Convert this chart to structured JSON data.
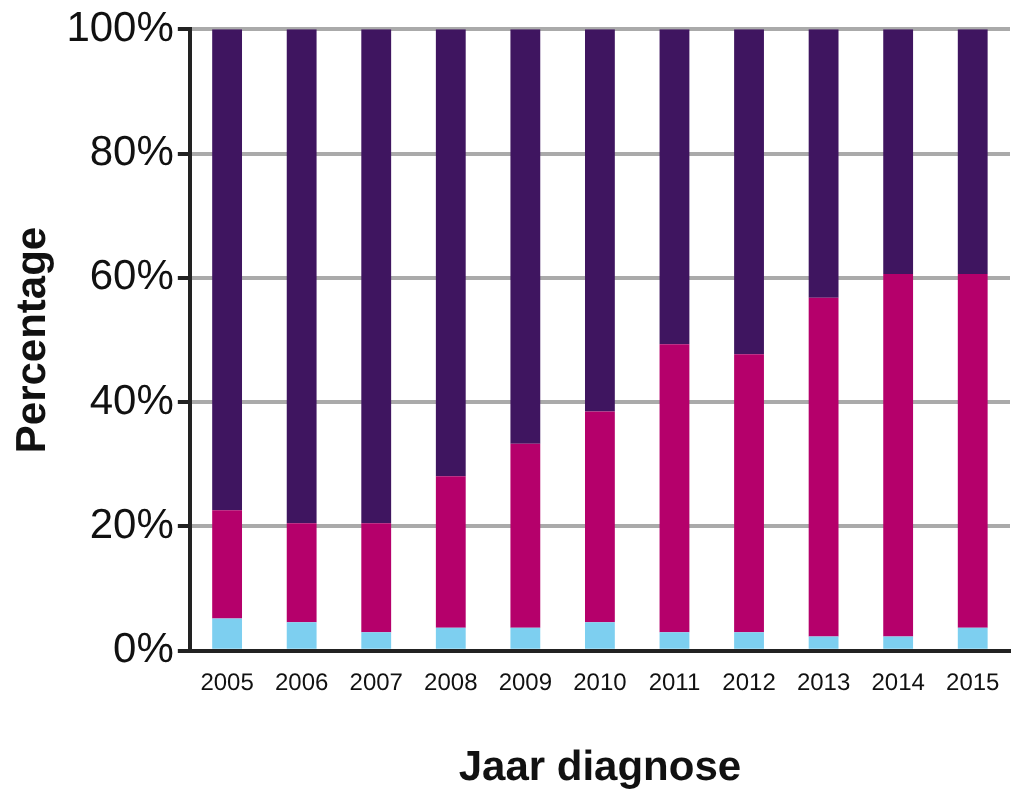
{
  "chart_data": {
    "type": "bar",
    "stacked": true,
    "xlabel": "Jaar diagnose",
    "ylabel": "Percentage",
    "categories": [
      "2005",
      "2006",
      "2007",
      "2008",
      "2009",
      "2010",
      "2011",
      "2012",
      "2013",
      "2014",
      "2015"
    ],
    "series": [
      {
        "color": "#7dcff0",
        "values": [
          5.2,
          4.6,
          3.0,
          3.7,
          3.7,
          4.6,
          3.0,
          3.0,
          2.3,
          2.3,
          3.7
        ]
      },
      {
        "color": "#b5006b",
        "values": [
          17.4,
          15.9,
          17.5,
          24.4,
          29.6,
          33.9,
          46.3,
          44.7,
          54.5,
          58.3,
          56.9
        ]
      },
      {
        "color": "#3f1560",
        "values": [
          77.4,
          79.5,
          79.5,
          71.9,
          66.7,
          61.5,
          50.7,
          52.3,
          43.2,
          39.4,
          39.4
        ]
      }
    ],
    "ylim": [
      0,
      100
    ],
    "yticks": [
      {
        "value": 0,
        "label": "0%"
      },
      {
        "value": 20,
        "label": "20%"
      },
      {
        "value": 40,
        "label": "40%"
      },
      {
        "value": 60,
        "label": "60%"
      },
      {
        "value": 80,
        "label": "80%"
      },
      {
        "value": 100,
        "label": "100%"
      }
    ],
    "grid": "y",
    "legend": false
  }
}
